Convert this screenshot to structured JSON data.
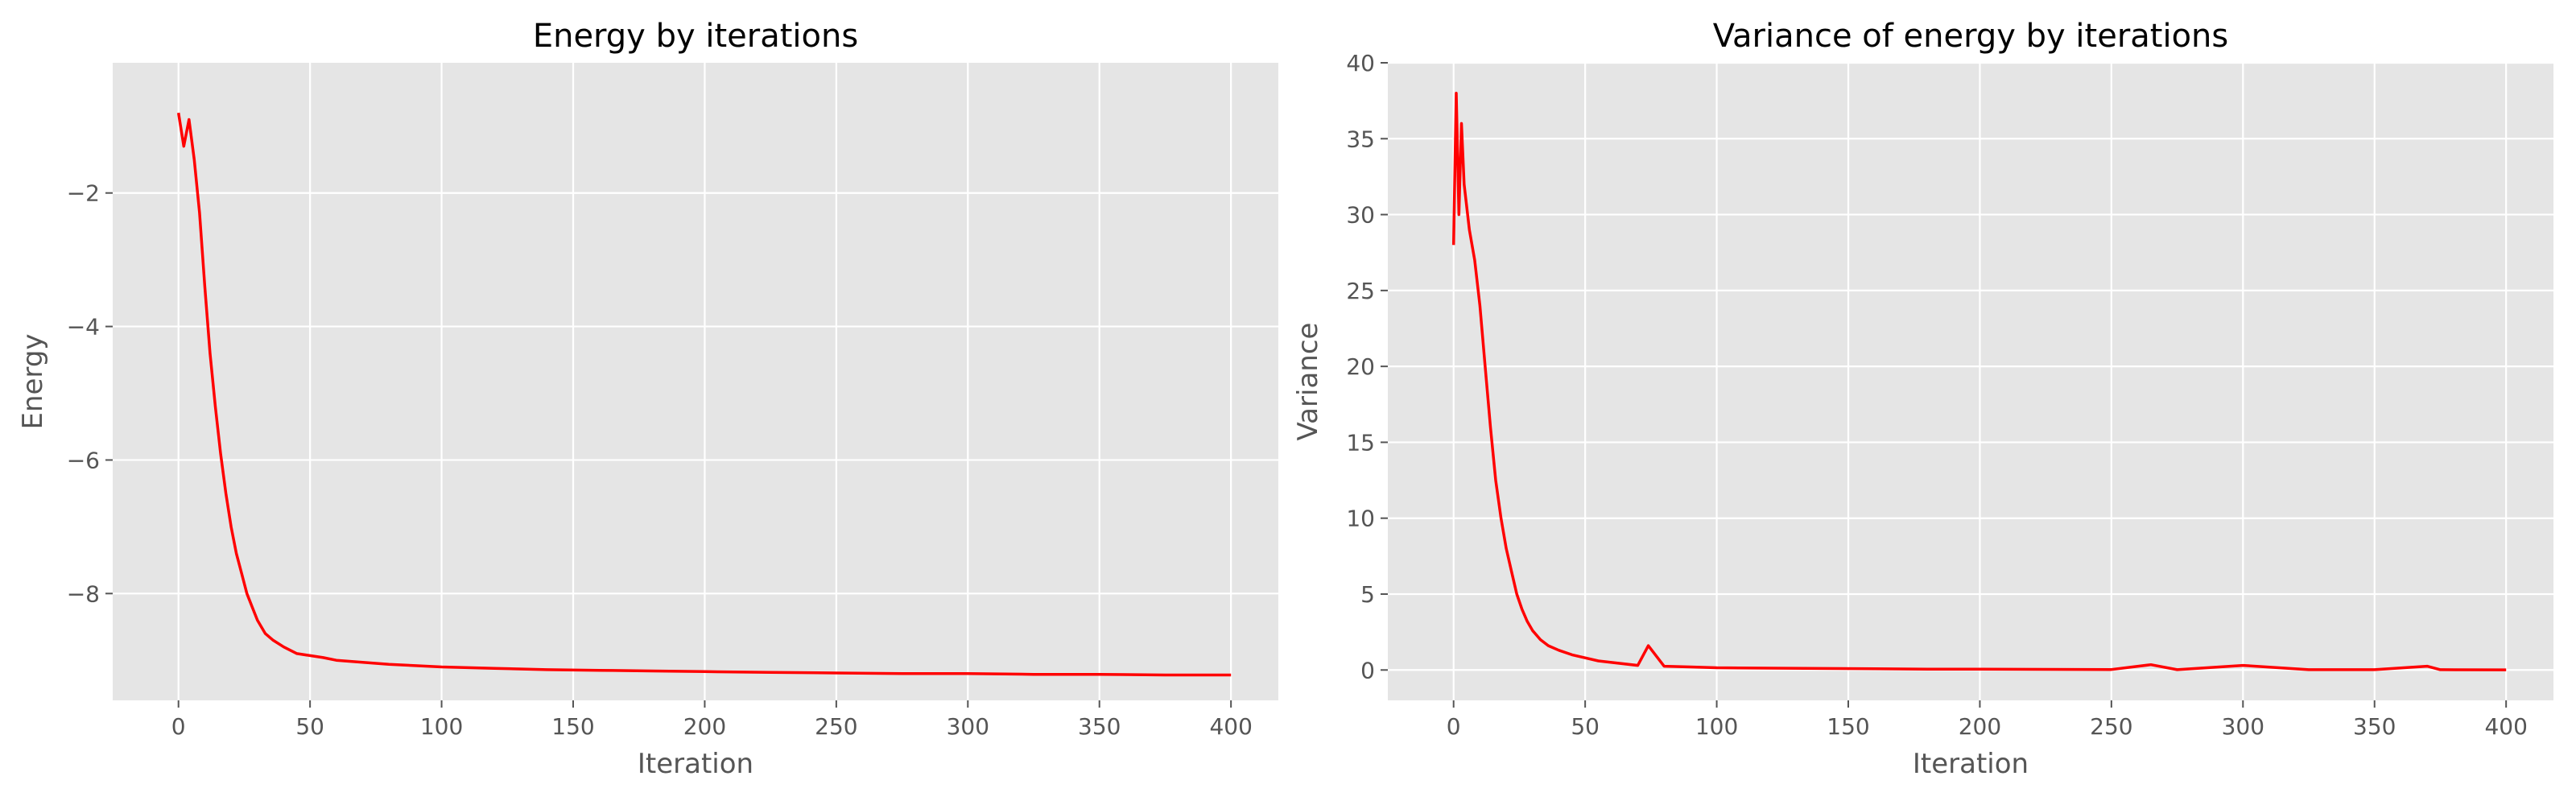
{
  "chart_data": [
    {
      "type": "line",
      "title": "Energy by iterations",
      "xlabel": "Iteration",
      "ylabel": "Energy",
      "xlim": [
        -25,
        418
      ],
      "ylim": [
        -9.6,
        -0.05
      ],
      "xticks": [
        0,
        50,
        100,
        150,
        200,
        250,
        300,
        350,
        400
      ],
      "yticks": [
        -2,
        -4,
        -6,
        -8
      ],
      "xtick_labels": [
        "0",
        "50",
        "100",
        "150",
        "200",
        "250",
        "300",
        "350",
        "400"
      ],
      "ytick_labels": [
        "−2",
        "−4",
        "−6",
        "−8"
      ],
      "grid": true,
      "color": "#ff0000",
      "series": [
        {
          "x": [
            0,
            2,
            4,
            6,
            8,
            10,
            12,
            14,
            16,
            18,
            20,
            22,
            24,
            26,
            28,
            30,
            33,
            36,
            40,
            45,
            50,
            55,
            60,
            70,
            80,
            90,
            100,
            120,
            140,
            160,
            180,
            200,
            225,
            250,
            275,
            300,
            325,
            350,
            375,
            400
          ],
          "y": [
            -0.8,
            -1.3,
            -0.9,
            -1.5,
            -2.3,
            -3.4,
            -4.4,
            -5.2,
            -5.9,
            -6.5,
            -7.0,
            -7.4,
            -7.7,
            -8.0,
            -8.2,
            -8.4,
            -8.6,
            -8.7,
            -8.8,
            -8.9,
            -8.93,
            -8.96,
            -9.0,
            -9.03,
            -9.06,
            -9.08,
            -9.1,
            -9.12,
            -9.14,
            -9.15,
            -9.16,
            -9.17,
            -9.18,
            -9.19,
            -9.2,
            -9.2,
            -9.21,
            -9.21,
            -9.22,
            -9.22
          ]
        }
      ]
    },
    {
      "type": "line",
      "title": "Variance of energy by iterations",
      "xlabel": "Iteration",
      "ylabel": "Variance",
      "xlim": [
        -25,
        418
      ],
      "ylim": [
        -2,
        40
      ],
      "xticks": [
        0,
        50,
        100,
        150,
        200,
        250,
        300,
        350,
        400
      ],
      "yticks": [
        0,
        5,
        10,
        15,
        20,
        25,
        30,
        35,
        40
      ],
      "xtick_labels": [
        "0",
        "50",
        "100",
        "150",
        "200",
        "250",
        "300",
        "350",
        "400"
      ],
      "ytick_labels": [
        "0",
        "5",
        "10",
        "15",
        "20",
        "25",
        "30",
        "35",
        "40"
      ],
      "grid": true,
      "color": "#ff0000",
      "series": [
        {
          "x": [
            0,
            1,
            2,
            3,
            4,
            6,
            8,
            10,
            12,
            14,
            16,
            18,
            20,
            22,
            24,
            26,
            28,
            30,
            33,
            36,
            40,
            45,
            50,
            55,
            60,
            70,
            74,
            80,
            90,
            100,
            120,
            140,
            160,
            180,
            200,
            225,
            250,
            265,
            275,
            300,
            325,
            350,
            370,
            375,
            400
          ],
          "y": [
            28,
            38,
            30,
            36,
            32,
            29,
            27,
            24,
            20,
            16,
            12.5,
            10,
            8,
            6.5,
            5,
            4,
            3.2,
            2.6,
            2,
            1.6,
            1.3,
            1.0,
            0.8,
            0.6,
            0.5,
            0.3,
            1.6,
            0.25,
            0.2,
            0.15,
            0.12,
            0.1,
            0.08,
            0.06,
            0.05,
            0.04,
            0.03,
            0.35,
            0.02,
            0.3,
            0.02,
            0.02,
            0.25,
            0.02,
            0.01
          ]
        }
      ]
    }
  ]
}
